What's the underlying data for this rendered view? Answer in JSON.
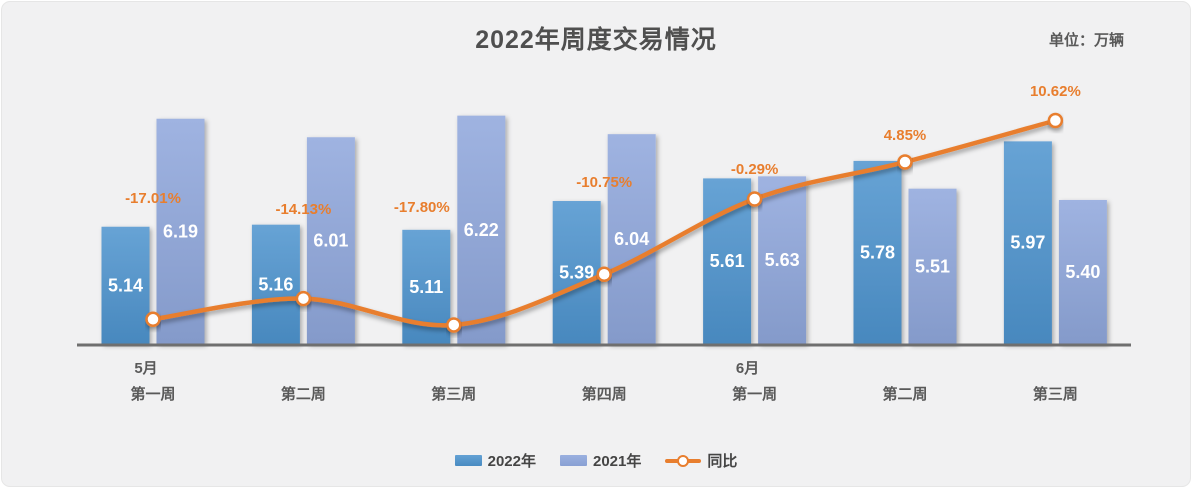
{
  "title": "2022年周度交易情况",
  "unit_label": "单位：万辆",
  "colors": {
    "bar_2022": "#4E94CE",
    "bar_2021": "#8FA7DC",
    "line": "#E87E2E",
    "pct_label": "#E87E2E",
    "value_label": "#FFFFFF",
    "axis_line": "#6F6F6F",
    "axis_text": "#595959",
    "title_text": "#4F4F4F",
    "background": "#F1F1F2"
  },
  "chart_data": {
    "type": "combo-bar-line",
    "title": "2022年周度交易情况",
    "unit": "单位：万辆",
    "categories": [
      "第一周",
      "第二周",
      "第三周",
      "第四周",
      "第一周",
      "第二周",
      "第三周"
    ],
    "month_groups": [
      {
        "index": 0,
        "label": "5月"
      },
      {
        "index": 4,
        "label": "6月"
      }
    ],
    "series": [
      {
        "name": "2022年",
        "type": "bar",
        "color": "#4E94CE",
        "values": [
          5.14,
          5.16,
          5.11,
          5.39,
          5.61,
          5.78,
          5.97
        ],
        "labels": [
          "5.14",
          "5.16",
          "5.11",
          "5.39",
          "5.61",
          "5.78",
          "5.97"
        ]
      },
      {
        "name": "2021年",
        "type": "bar",
        "color": "#8FA7DC",
        "values": [
          6.19,
          6.01,
          6.22,
          6.04,
          5.63,
          5.51,
          5.4
        ],
        "labels": [
          "6.19",
          "6.01",
          "6.22",
          "6.04",
          "5.63",
          "5.51",
          "5.40"
        ]
      },
      {
        "name": "同比",
        "type": "line",
        "color": "#E87E2E",
        "values": [
          -17.01,
          -14.13,
          -17.8,
          -10.75,
          -0.29,
          4.85,
          10.62
        ],
        "labels": [
          "-17.01%",
          "-14.13%",
          "-17.80%",
          "-10.75%",
          "-0.29%",
          "4.85%",
          "10.62%"
        ]
      }
    ],
    "value_axis": {
      "min": 4.0,
      "visible": false
    },
    "pct_axis": {
      "visible": false
    },
    "gridlines": false,
    "legend_position": "bottom"
  },
  "legend": {
    "items": [
      {
        "label": "2022年"
      },
      {
        "label": "2021年"
      },
      {
        "label": "同比"
      }
    ]
  }
}
